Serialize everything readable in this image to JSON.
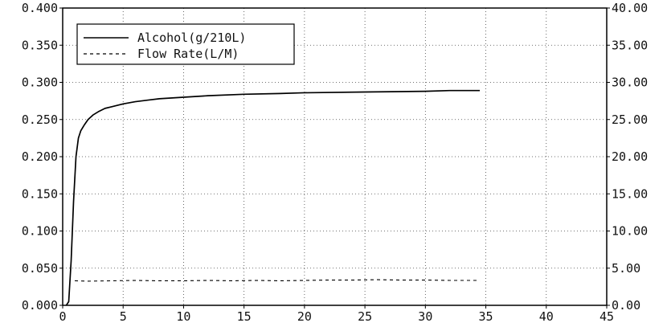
{
  "chart_data": {
    "type": "line",
    "title": "",
    "xlabel": "",
    "ylabel": "",
    "y2label": "",
    "xlim": [
      0,
      45
    ],
    "ylim": [
      0,
      0.4
    ],
    "y2lim": [
      0,
      40
    ],
    "x_ticks": [
      0,
      5,
      10,
      15,
      20,
      25,
      30,
      35,
      40,
      45
    ],
    "x_tick_labels": [
      "0",
      "5",
      "10",
      "15",
      "20",
      "25",
      "30",
      "35",
      "40",
      "45"
    ],
    "y_ticks": [
      0,
      0.05,
      0.1,
      0.15,
      0.2,
      0.25,
      0.3,
      0.35,
      0.4
    ],
    "y_tick_labels": [
      "0.000",
      "0.050",
      "0.100",
      "0.150",
      "0.200",
      "0.250",
      "0.300",
      "0.350",
      "0.400"
    ],
    "y2_ticks": [
      0,
      5,
      10,
      15,
      20,
      25,
      30,
      35,
      40
    ],
    "y2_tick_labels": [
      "0.00",
      "5.00",
      "10.00",
      "15.00",
      "20.00",
      "25.00",
      "30.00",
      "35.00",
      "40.00"
    ],
    "grid": true,
    "legend_position": "top-left",
    "series": [
      {
        "name": "Alcohol(g/210L)",
        "axis": "left",
        "style": "solid",
        "color": "#000000",
        "x": [
          0.3,
          0.5,
          0.7,
          0.9,
          1.1,
          1.3,
          1.5,
          1.8,
          2.1,
          2.5,
          3,
          3.5,
          4,
          5,
          6,
          7,
          8,
          10,
          12,
          15,
          18,
          20,
          25,
          30,
          32,
          34.5
        ],
        "y": [
          0,
          0.005,
          0.06,
          0.14,
          0.2,
          0.225,
          0.235,
          0.243,
          0.25,
          0.256,
          0.261,
          0.265,
          0.267,
          0.271,
          0.274,
          0.276,
          0.278,
          0.28,
          0.282,
          0.284,
          0.285,
          0.286,
          0.287,
          0.288,
          0.289,
          0.289
        ]
      },
      {
        "name": "Flow Rate(L/M)",
        "axis": "right",
        "style": "dashed",
        "color": "#000000",
        "x": [
          1,
          2,
          4,
          6,
          8,
          10,
          12,
          14,
          16,
          18,
          20,
          22,
          24,
          26,
          28,
          30,
          32,
          34.5
        ],
        "y": [
          3.3,
          3.25,
          3.3,
          3.35,
          3.3,
          3.3,
          3.35,
          3.3,
          3.35,
          3.3,
          3.35,
          3.4,
          3.4,
          3.45,
          3.4,
          3.4,
          3.35,
          3.35
        ]
      }
    ]
  }
}
